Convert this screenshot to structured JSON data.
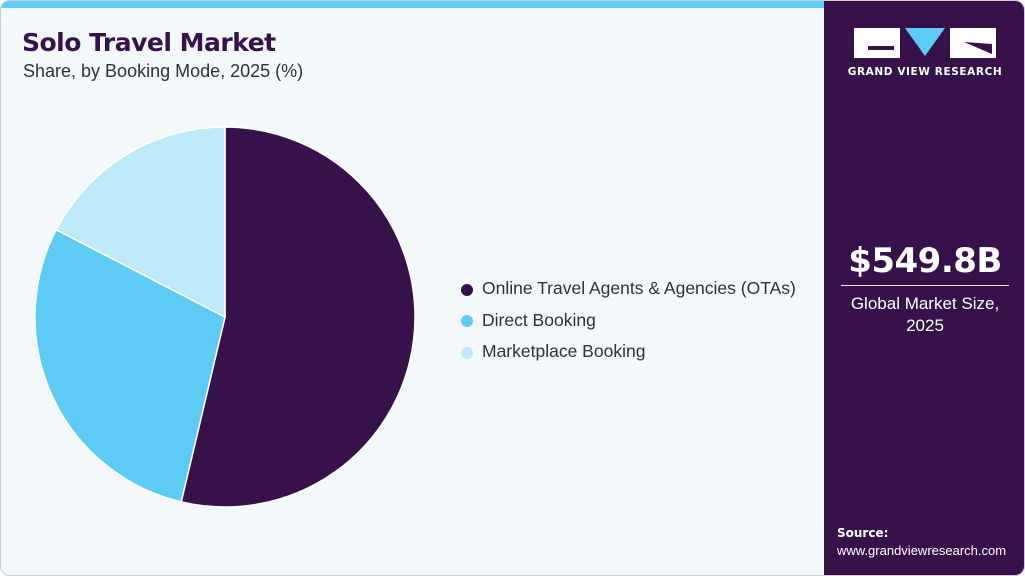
{
  "header": {
    "title": "Solo Travel Market",
    "subtitle": "Share, by Booking Mode, 2025 (%)"
  },
  "colors": {
    "accent_bar": "#5ecbf5",
    "brand_dark": "#37114a",
    "background": "#f3f8fb"
  },
  "legend": [
    {
      "label": "Online Travel Agents & Agencies (OTAs)",
      "color": "#37114a"
    },
    {
      "label": "Direct Booking",
      "color": "#5ecbf5"
    },
    {
      "label": "Marketplace Booking",
      "color": "#bde9f9"
    }
  ],
  "sidebar": {
    "logo_text": "GRAND VIEW RESEARCH",
    "market_value": "$549.8B",
    "market_label_line1": "Global Market Size,",
    "market_label_line2": "2025",
    "source_title": "Source:",
    "source_url": "www.grandviewresearch.com"
  },
  "chart_data": {
    "type": "pie",
    "title": "Solo Travel Market",
    "subtitle": "Share, by Booking Mode, 2025 (%)",
    "categories": [
      "Online Travel Agents & Agencies (OTAs)",
      "Direct Booking",
      "Marketplace Booking"
    ],
    "values": [
      53.7,
      28.9,
      17.4
    ],
    "colors": [
      "#37114a",
      "#5ecbf5",
      "#bde9f9"
    ],
    "start_angle": "12 o'clock, clockwise",
    "legend_position": "right",
    "data_labels": false
  }
}
